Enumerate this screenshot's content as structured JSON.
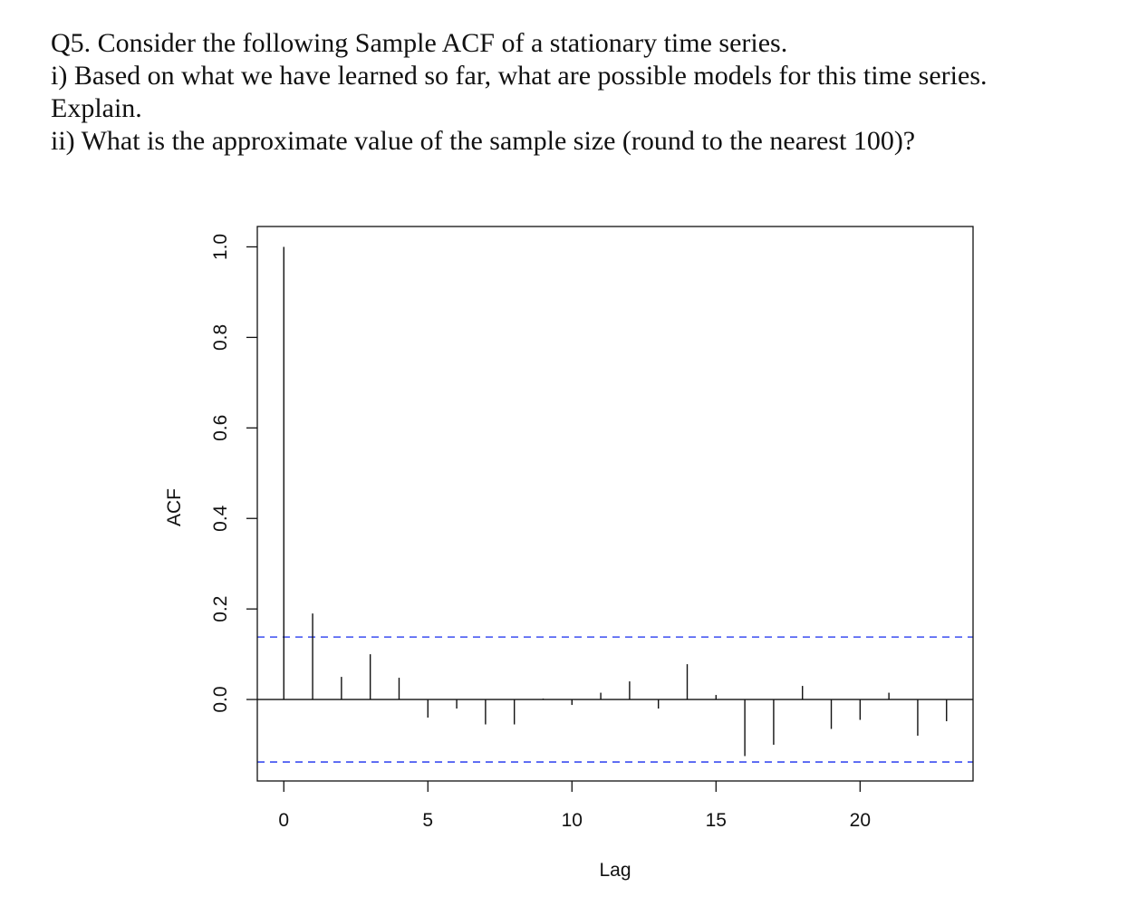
{
  "question": {
    "lines": [
      "Q5.  Consider the following Sample ACF of a stationary time series.",
      "i)  Based on what we have learned so far, what are possible models for this time series.",
      "Explain.",
      "ii)  What is the approximate value of the sample size (round to the nearest 100)?"
    ]
  },
  "chart_data": {
    "type": "bar",
    "xlabel": "Lag",
    "ylabel": "ACF",
    "xlim": [
      -0.92,
      23.92
    ],
    "ylim": [
      -0.18,
      1.045
    ],
    "x_ticks": [
      0,
      5,
      10,
      15,
      20
    ],
    "x_tick_labels": [
      "0",
      "5",
      "10",
      "15",
      "20"
    ],
    "y_ticks": [
      0.0,
      0.2,
      0.4,
      0.6,
      0.8,
      1.0
    ],
    "y_tick_labels": [
      "0.0",
      "0.2",
      "0.4",
      "0.6",
      "0.8",
      "1.0"
    ],
    "lags": [
      0,
      1,
      2,
      3,
      4,
      5,
      6,
      7,
      8,
      9,
      10,
      11,
      12,
      13,
      14,
      15,
      16,
      17,
      18,
      19,
      20,
      21,
      22,
      23
    ],
    "acf": [
      1.0,
      0.19,
      0.05,
      0.1,
      0.048,
      -0.04,
      -0.02,
      -0.055,
      -0.055,
      0.0,
      -0.012,
      0.015,
      0.04,
      -0.02,
      0.078,
      0.01,
      -0.125,
      -0.1,
      0.03,
      -0.065,
      -0.045,
      0.015,
      -0.08,
      -0.048
    ],
    "confidence_bound": 0.138,
    "confidence_color": "#3b4df0",
    "grid": false,
    "legend": "none"
  }
}
